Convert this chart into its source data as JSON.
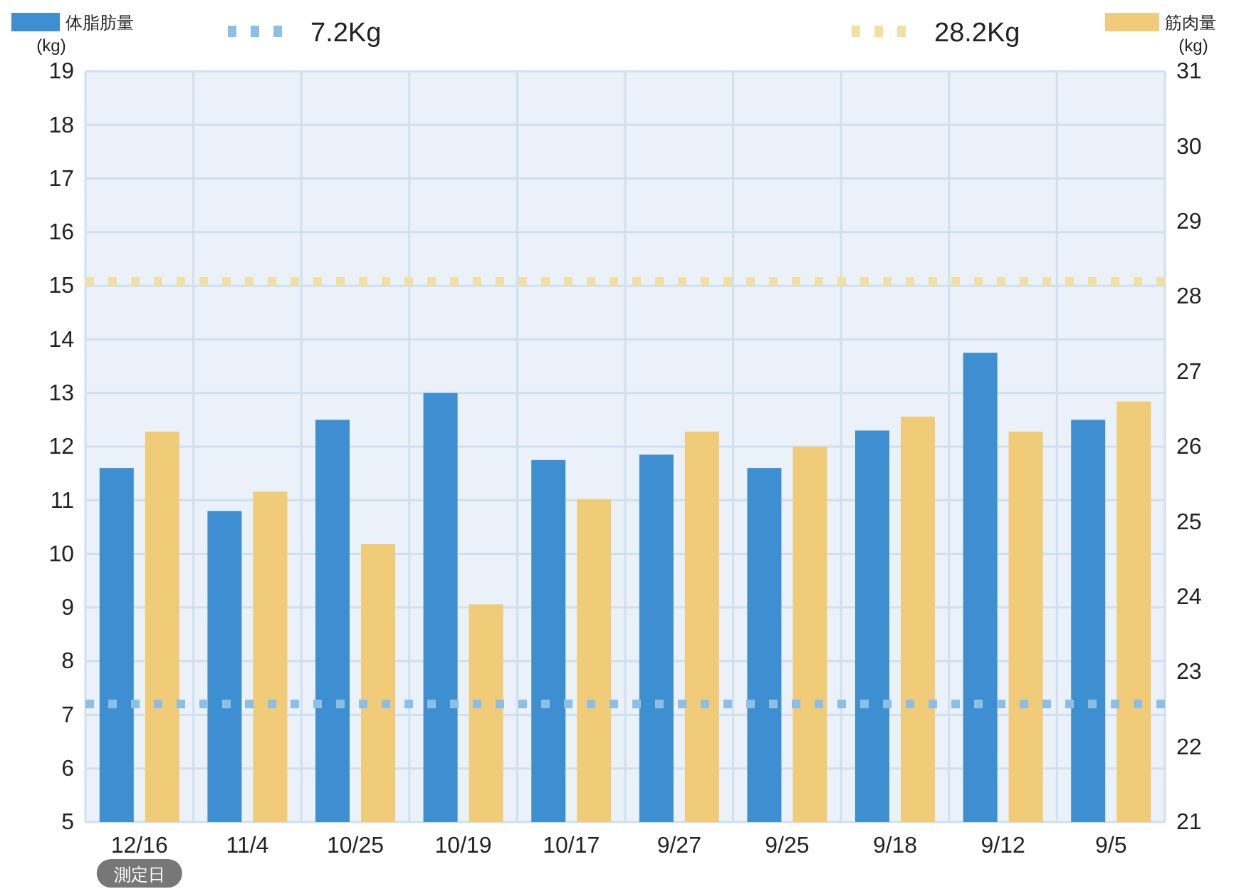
{
  "chart_data": {
    "type": "bar",
    "xlabel": "測定日",
    "ylabel": "(kg)",
    "y2label": "(kg)",
    "categories": [
      "12/16",
      "11/4",
      "10/25",
      "10/19",
      "10/17",
      "9/27",
      "9/25",
      "9/18",
      "9/12",
      "9/5"
    ],
    "series": [
      {
        "name": "体脂肪量",
        "color": "#3d8fd1",
        "values": [
          11.6,
          10.8,
          12.5,
          13.0,
          11.75,
          11.85,
          11.6,
          12.3,
          13.75,
          12.5
        ]
      },
      {
        "name": "筋肉量",
        "color": "#f0cc78",
        "axis": "y2",
        "values": [
          26.2,
          25.4,
          24.7,
          23.9,
          25.3,
          26.2,
          26.0,
          26.4,
          26.2,
          26.6
        ]
      }
    ],
    "ylim": [
      5,
      19
    ],
    "yticks": [
      5,
      6,
      7,
      8,
      9,
      10,
      11,
      12,
      13,
      14,
      15,
      16,
      17,
      18,
      19
    ],
    "y2lim": [
      21,
      31
    ],
    "y2ticks": [
      21,
      22,
      23,
      24,
      25,
      26,
      27,
      28,
      29,
      30,
      31
    ],
    "ref_lines": [
      {
        "axis": "y",
        "value": 7.2,
        "label": "7.2Kg",
        "color": "#8dbfe6",
        "line_style": "dotted"
      },
      {
        "axis": "y2",
        "value": 28.2,
        "label": "28.2Kg",
        "color": "#f3dfa0",
        "line_style": "dotted"
      }
    ],
    "grid": true,
    "legend": "top"
  }
}
